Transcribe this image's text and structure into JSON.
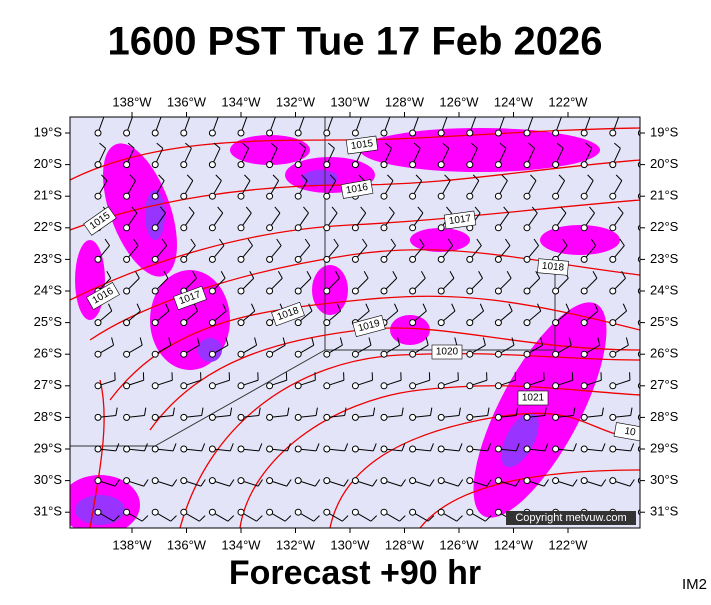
{
  "title": "1600 PST Tue 17 Feb 2026",
  "footer": "Forecast +90 hr",
  "corner_label": "IM2",
  "copyright": "Copyright metvuw.com",
  "lon_labels": [
    "138°W",
    "136°W",
    "134°W",
    "132°W",
    "130°W",
    "128°W",
    "126°W",
    "124°W",
    "122°W"
  ],
  "lat_labels": [
    "19°S",
    "20°S",
    "21°S",
    "22°S",
    "23°S",
    "24°S",
    "25°S",
    "26°S",
    "27°S",
    "28°S",
    "29°S",
    "30°S",
    "31°S"
  ],
  "isobar_labels": [
    "1015",
    "1016",
    "1017",
    "1018",
    "1016",
    "1017",
    "1018",
    "1019",
    "1020",
    "1021",
    "1015",
    "10"
  ]
}
